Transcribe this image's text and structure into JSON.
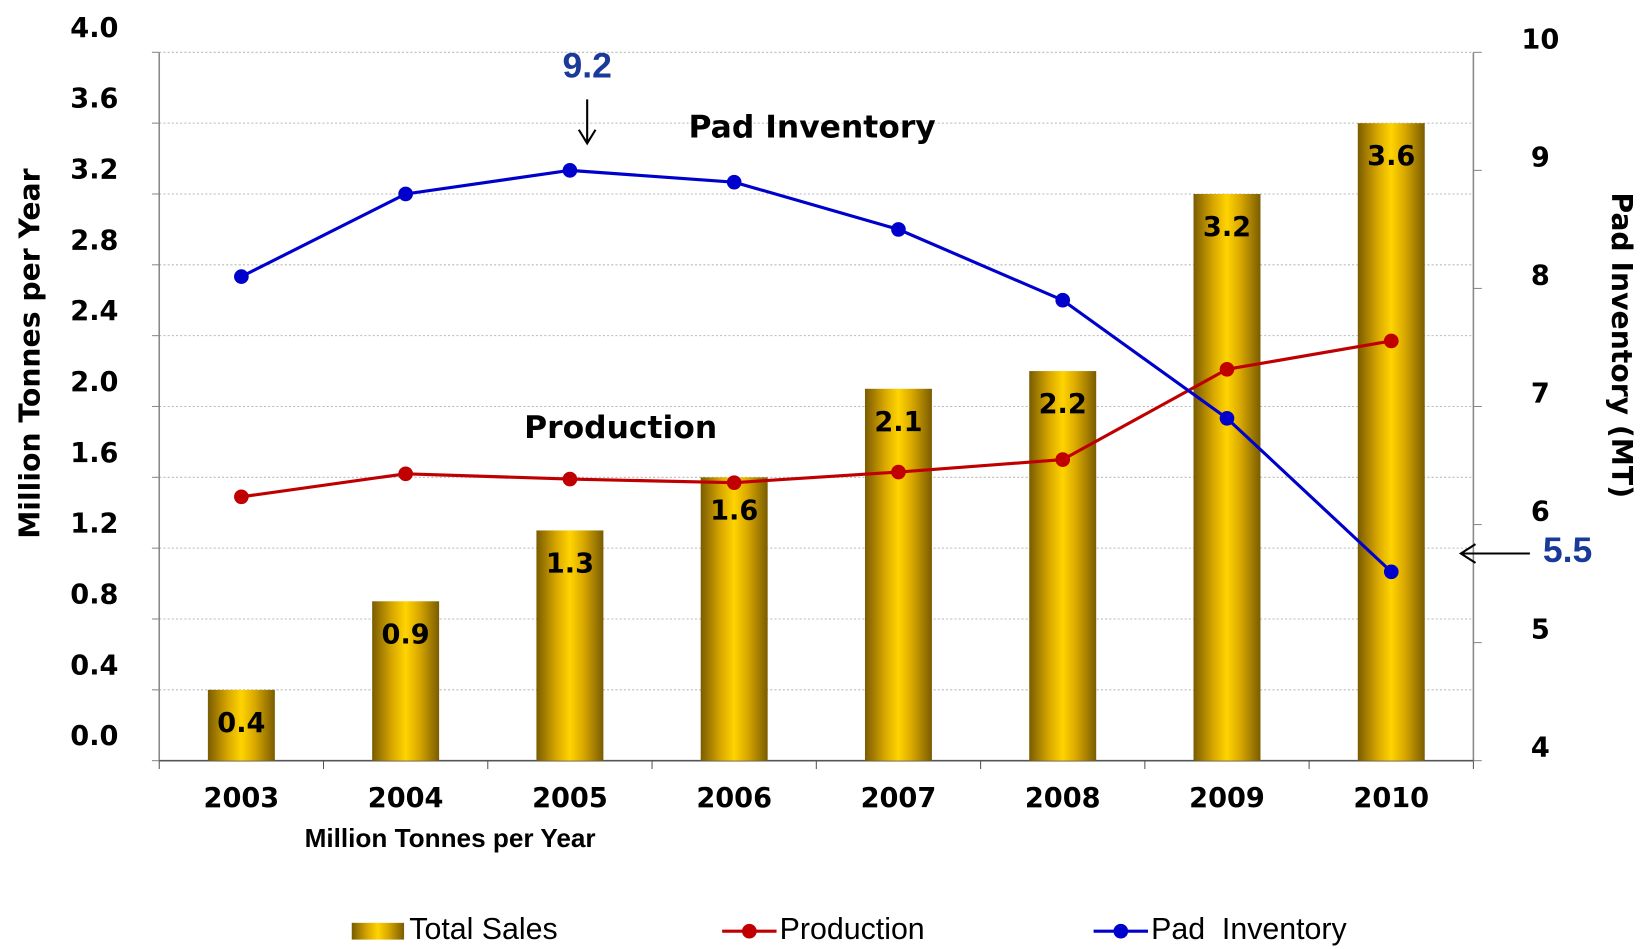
{
  "chart_data": {
    "type": "bar_line",
    "categories": [
      "2003",
      "2004",
      "2005",
      "2006",
      "2007",
      "2008",
      "2009",
      "2010"
    ],
    "series": [
      {
        "name": "Total Sales",
        "type": "bar",
        "color": "#f2c200",
        "values": [
          0.4,
          0.9,
          1.3,
          1.6,
          2.1,
          2.2,
          3.2,
          3.6
        ]
      },
      {
        "name": "Production",
        "type": "line",
        "color": "#c00000",
        "values": [
          1.49,
          1.62,
          1.59,
          1.57,
          1.63,
          1.7,
          2.21,
          2.37
        ]
      },
      {
        "name": "Pad  Inventory",
        "type": "line",
        "axis": "y2",
        "color": "#0000cc",
        "values": [
          8.1,
          8.8,
          9.0,
          8.9,
          8.5,
          7.9,
          6.9,
          5.6
        ]
      }
    ],
    "ylabel": "Million Tonnes  per Year",
    "y2label": "Pad Inventory (MT)",
    "xlabel": "Million Tonnes per Year",
    "ylim": [
      0,
      4
    ],
    "yticks": [
      {
        "value": 0,
        "label": "0.0"
      },
      {
        "value": 0.4,
        "label": "0.4"
      },
      {
        "value": 0.8,
        "label": "0.8"
      },
      {
        "value": 1.2,
        "label": "1.2"
      },
      {
        "value": 1.6,
        "label": "1.6"
      },
      {
        "value": 2,
        "label": "2.0"
      },
      {
        "value": 2.4,
        "label": "2.4"
      },
      {
        "value": 2.8,
        "label": "2.8"
      },
      {
        "value": 3.2,
        "label": "3.2"
      },
      {
        "value": 3.6,
        "label": "3.6"
      },
      {
        "value": 4,
        "label": "4.0"
      }
    ],
    "y2lim": [
      4,
      10
    ],
    "y2ticks": [
      4,
      5,
      6,
      7,
      8,
      9,
      10
    ],
    "grid": true,
    "legend": "bottom",
    "annotations": [
      "Pad Inventory",
      "Production",
      "9.2",
      "5.5"
    ]
  }
}
